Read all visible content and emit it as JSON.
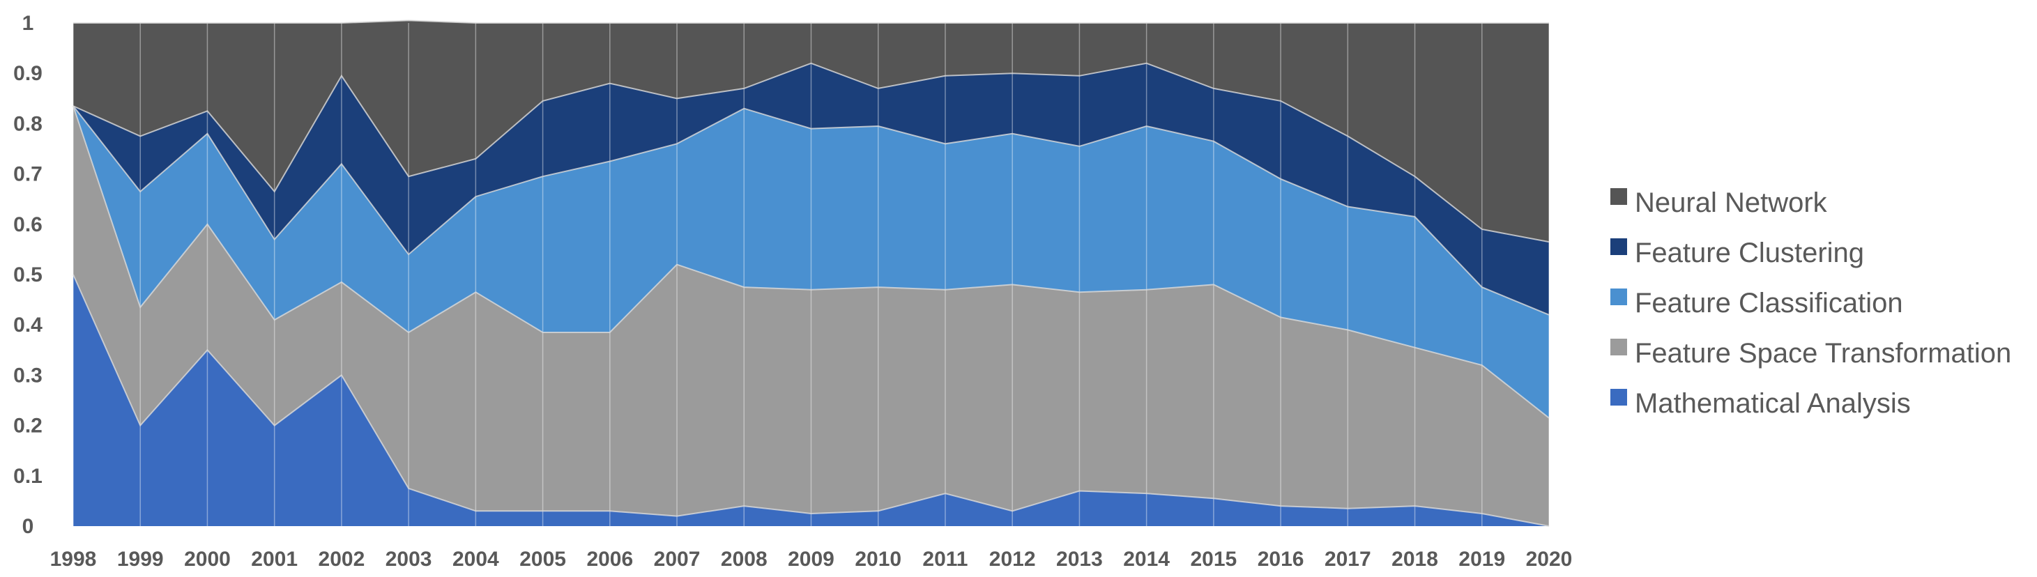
{
  "chart_data": {
    "type": "area",
    "stacked": true,
    "normalized": true,
    "x": [
      "1998",
      "1999",
      "2000",
      "2001",
      "2002",
      "2003",
      "2004",
      "2005",
      "2006",
      "2007",
      "2008",
      "2009",
      "2010",
      "2011",
      "2012",
      "2013",
      "2014",
      "2015",
      "2016",
      "2017",
      "2018",
      "2019",
      "2020"
    ],
    "ylim": [
      0,
      1
    ],
    "yticks": [
      "0",
      "0.1",
      "0.2",
      "0.3",
      "0.4",
      "0.5",
      "0.6",
      "0.7",
      "0.8",
      "0.9",
      "1"
    ],
    "grid": "vertical",
    "legend_position": "right",
    "series": [
      {
        "name": "Mathematical Analysis",
        "color": "#3a6bc0",
        "values": [
          0.5,
          0.2,
          0.35,
          0.2,
          0.3,
          0.075,
          0.03,
          0.03,
          0.03,
          0.02,
          0.04,
          0.025,
          0.03,
          0.065,
          0.03,
          0.07,
          0.065,
          0.055,
          0.04,
          0.035,
          0.04,
          0.025,
          0.0
        ]
      },
      {
        "name": "Feature Space Transformation",
        "color": "#9b9b9b",
        "values": [
          0.335,
          0.235,
          0.25,
          0.21,
          0.185,
          0.31,
          0.435,
          0.355,
          0.355,
          0.5,
          0.435,
          0.445,
          0.445,
          0.405,
          0.45,
          0.395,
          0.405,
          0.425,
          0.375,
          0.355,
          0.315,
          0.295,
          0.215
        ]
      },
      {
        "name": "Feature Classification",
        "color": "#4a90d0",
        "values": [
          0.0,
          0.23,
          0.18,
          0.16,
          0.235,
          0.155,
          0.19,
          0.31,
          0.34,
          0.24,
          0.355,
          0.32,
          0.32,
          0.29,
          0.3,
          0.29,
          0.325,
          0.285,
          0.275,
          0.245,
          0.26,
          0.155,
          0.205
        ]
      },
      {
        "name": "Feature Clustering",
        "color": "#1b3f7a",
        "values": [
          0.0,
          0.11,
          0.045,
          0.095,
          0.175,
          0.155,
          0.075,
          0.15,
          0.155,
          0.09,
          0.04,
          0.13,
          0.075,
          0.135,
          0.12,
          0.14,
          0.125,
          0.105,
          0.155,
          0.14,
          0.08,
          0.115,
          0.145
        ]
      },
      {
        "name": "Neural Network",
        "color": "#555555",
        "values": [
          0.165,
          0.225,
          0.175,
          0.335,
          0.105,
          0.31,
          0.27,
          0.155,
          0.12,
          0.15,
          0.13,
          0.08,
          0.13,
          0.105,
          0.1,
          0.105,
          0.08,
          0.13,
          0.155,
          0.225,
          0.305,
          0.41,
          0.435
        ]
      }
    ]
  }
}
